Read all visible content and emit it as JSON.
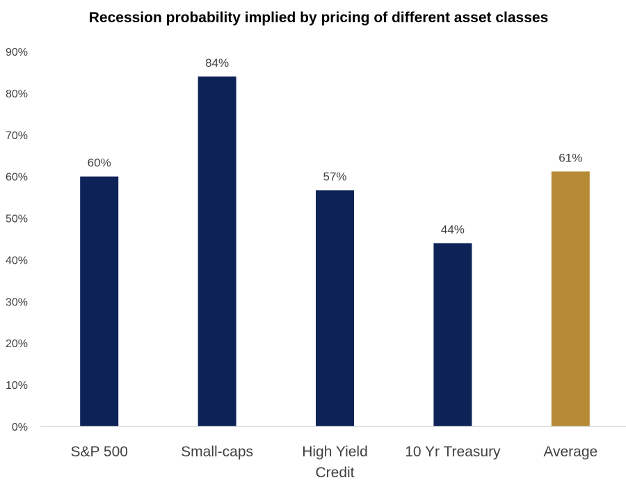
{
  "chart_data": {
    "type": "bar",
    "title": "Recession probability implied by pricing of different asset classes",
    "xlabel": "",
    "ylabel": "",
    "ylim": [
      0,
      90
    ],
    "yticks": [
      0,
      10,
      20,
      30,
      40,
      50,
      60,
      70,
      80,
      90
    ],
    "ytick_labels": [
      "0%",
      "10%",
      "20%",
      "30%",
      "40%",
      "50%",
      "60%",
      "70%",
      "80%",
      "90%"
    ],
    "grid": false,
    "legend": "none",
    "categories": [
      [
        "S&P  500"
      ],
      [
        "Small-caps"
      ],
      [
        "High Yield",
        "Credit"
      ],
      [
        "10 Yr Treasury"
      ],
      [
        "Average"
      ]
    ],
    "values": [
      60,
      84,
      56.7,
      44,
      61.2
    ],
    "data_labels": [
      "60%",
      "84%",
      "57%",
      "44%",
      "61%"
    ],
    "colors": [
      "#0d2257",
      "#0d2257",
      "#0d2257",
      "#0d2257",
      "#b68b35"
    ],
    "axis_color": "#d9d9d9"
  }
}
